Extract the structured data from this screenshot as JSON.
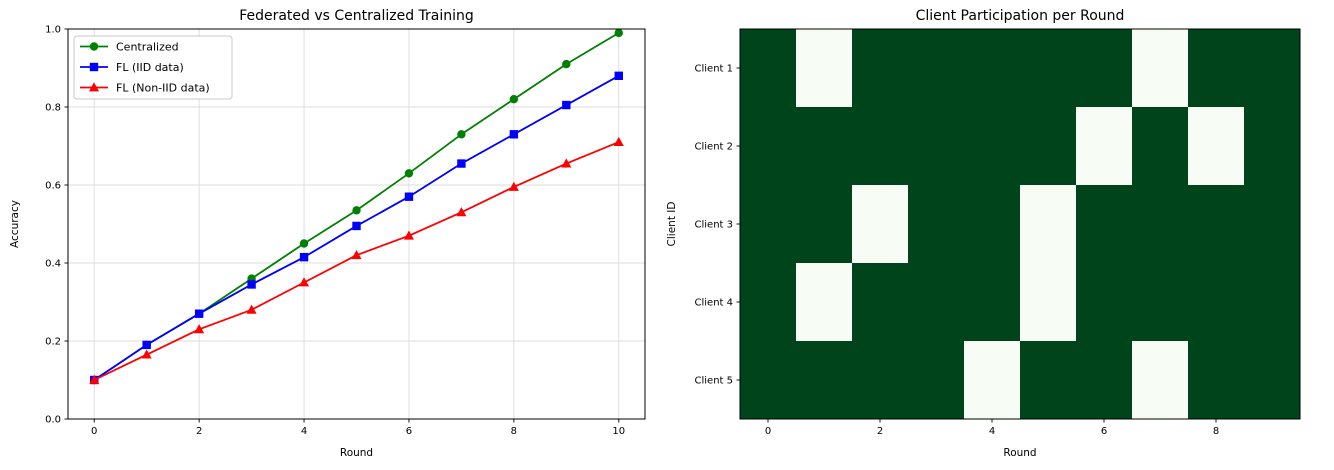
{
  "figure": {
    "background": "#ffffff"
  },
  "chart_data": [
    {
      "type": "line",
      "title": "Federated vs Centralized Training",
      "xlabel": "Round",
      "ylabel": "Accuracy",
      "x": [
        0,
        1,
        2,
        3,
        4,
        5,
        6,
        7,
        8,
        9,
        10
      ],
      "series": [
        {
          "name": "Centralized",
          "color": "#008000",
          "marker": "circle",
          "values": [
            0.1,
            0.19,
            0.27,
            0.36,
            0.45,
            0.535,
            0.63,
            0.73,
            0.82,
            0.91,
            0.99
          ]
        },
        {
          "name": "FL (IID data)",
          "color": "#0000ff",
          "marker": "square",
          "values": [
            0.1,
            0.19,
            0.27,
            0.345,
            0.415,
            0.495,
            0.57,
            0.655,
            0.73,
            0.805,
            0.88
          ]
        },
        {
          "name": "FL (Non-IID data)",
          "color": "#ff0000",
          "marker": "triangle",
          "values": [
            0.1,
            0.165,
            0.23,
            0.28,
            0.35,
            0.42,
            0.47,
            0.53,
            0.595,
            0.655,
            0.71
          ]
        }
      ],
      "xticks": [
        0,
        2,
        4,
        6,
        8,
        10
      ],
      "yticks": [
        0.0,
        0.2,
        0.4,
        0.6,
        0.8,
        1.0
      ],
      "xlim": [
        -0.5,
        10.5
      ],
      "ylim": [
        0,
        1
      ],
      "grid": true,
      "grid_color": "#dcdcdc",
      "legend_position": "upper left"
    },
    {
      "type": "heatmap",
      "title": "Client Participation per Round",
      "xlabel": "Round",
      "ylabel": "Client ID",
      "rows": [
        "Client 1",
        "Client 2",
        "Client 3",
        "Client 4",
        "Client 5"
      ],
      "columns": [
        0,
        1,
        2,
        3,
        4,
        5,
        6,
        7,
        8,
        9
      ],
      "xticks": [
        0,
        2,
        4,
        6,
        8
      ],
      "matrix": [
        [
          1,
          0,
          1,
          1,
          1,
          1,
          1,
          0,
          1,
          1
        ],
        [
          1,
          1,
          1,
          1,
          1,
          1,
          0,
          1,
          0,
          1
        ],
        [
          1,
          1,
          0,
          1,
          1,
          0,
          1,
          1,
          1,
          1
        ],
        [
          1,
          0,
          1,
          1,
          1,
          0,
          1,
          1,
          1,
          1
        ],
        [
          1,
          1,
          1,
          1,
          0,
          1,
          1,
          0,
          1,
          1
        ]
      ],
      "colors": {
        "participated": "#00441b",
        "absent": "#f7fcf5"
      },
      "legend_note": ""
    }
  ]
}
